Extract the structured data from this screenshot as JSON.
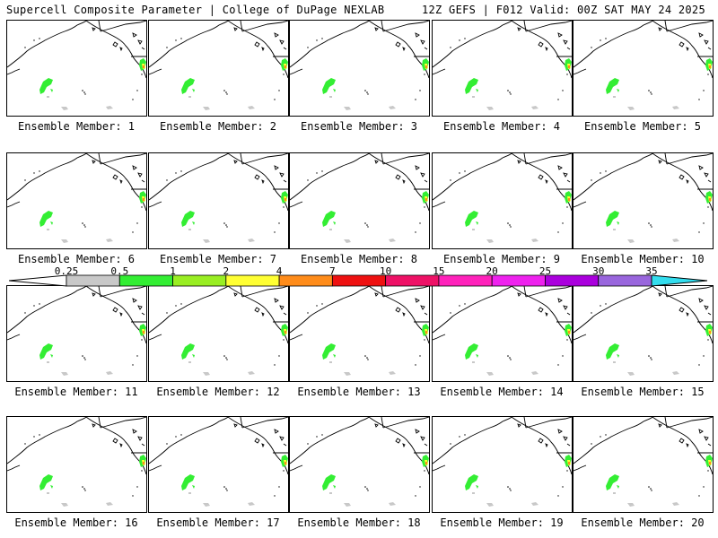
{
  "header": {
    "title": "Supercell Composite Parameter | College of DuPage NEXLAB",
    "run_info": "12Z GEFS | F012 Valid: 00Z SAT MAY 24 2025"
  },
  "members": [
    {
      "label": "Ensemble Member: 1"
    },
    {
      "label": "Ensemble Member: 2"
    },
    {
      "label": "Ensemble Member: 3"
    },
    {
      "label": "Ensemble Member: 4"
    },
    {
      "label": "Ensemble Member: 5"
    },
    {
      "label": "Ensemble Member: 6"
    },
    {
      "label": "Ensemble Member: 7"
    },
    {
      "label": "Ensemble Member: 8"
    },
    {
      "label": "Ensemble Member: 9"
    },
    {
      "label": "Ensemble Member: 10"
    },
    {
      "label": "Ensemble Member: 11"
    },
    {
      "label": "Ensemble Member: 12"
    },
    {
      "label": "Ensemble Member: 13"
    },
    {
      "label": "Ensemble Member: 14"
    },
    {
      "label": "Ensemble Member: 15"
    },
    {
      "label": "Ensemble Member: 16"
    },
    {
      "label": "Ensemble Member: 17"
    },
    {
      "label": "Ensemble Member: 18"
    },
    {
      "label": "Ensemble Member: 19"
    },
    {
      "label": "Ensemble Member: 20"
    }
  ],
  "colorbar": {
    "labels": [
      "0.25",
      "0.5",
      "1",
      "2",
      "4",
      "7",
      "10",
      "15",
      "20",
      "25",
      "30",
      "35"
    ],
    "colors": [
      "#c8c8c8",
      "#33ee33",
      "#99ee22",
      "#ffff33",
      "#ff8c1a",
      "#ee1111",
      "#ee1166",
      "#ff22bb",
      "#ee22ee",
      "#aa00dd",
      "#9966dd",
      "#33ddee"
    ]
  }
}
